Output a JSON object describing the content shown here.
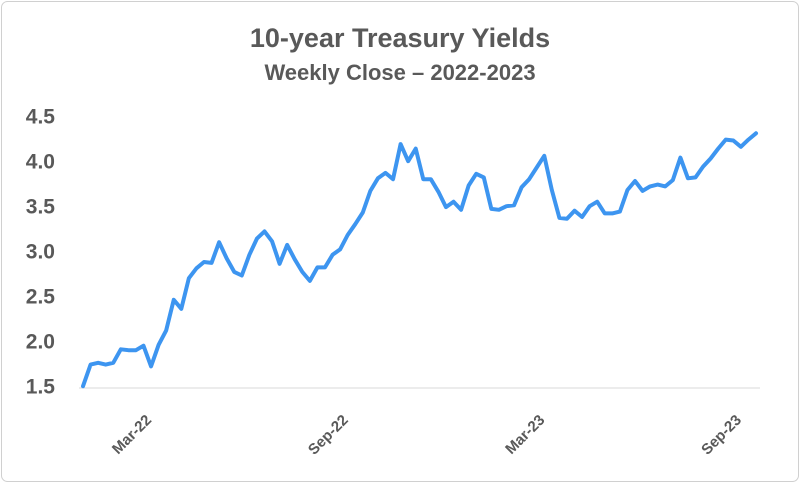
{
  "chart_data": {
    "type": "line",
    "title": "10-year Treasury Yields",
    "subtitle": "Weekly Close – 2022-2023",
    "color": "#3d95f0",
    "categories": [
      null,
      null,
      null,
      null,
      null,
      null,
      null,
      null,
      "Mar-22",
      null,
      null,
      null,
      null,
      null,
      null,
      null,
      null,
      null,
      null,
      null,
      null,
      null,
      null,
      null,
      null,
      null,
      null,
      null,
      null,
      null,
      null,
      null,
      null,
      null,
      "Sep-22",
      null,
      null,
      null,
      null,
      null,
      null,
      null,
      null,
      null,
      null,
      null,
      null,
      null,
      null,
      null,
      null,
      null,
      null,
      null,
      null,
      null,
      null,
      null,
      null,
      null,
      "Mar-23",
      null,
      null,
      null,
      null,
      null,
      null,
      null,
      null,
      null,
      null,
      null,
      null,
      null,
      null,
      null,
      null,
      null,
      null,
      null,
      null,
      null,
      null,
      null,
      null,
      null,
      "Sep-23",
      null,
      null,
      null
    ],
    "values": [
      1.52,
      1.76,
      1.78,
      1.76,
      1.78,
      1.93,
      1.92,
      1.92,
      1.97,
      1.74,
      1.98,
      2.14,
      2.48,
      2.38,
      2.72,
      2.83,
      2.9,
      2.89,
      3.12,
      2.94,
      2.79,
      2.75,
      2.98,
      3.16,
      3.24,
      3.13,
      2.88,
      3.09,
      2.93,
      2.79,
      2.69,
      2.84,
      2.84,
      2.98,
      3.04,
      3.2,
      3.32,
      3.45,
      3.69,
      3.83,
      3.89,
      3.82,
      4.21,
      4.02,
      4.16,
      3.82,
      3.82,
      3.68,
      3.51,
      3.57,
      3.48,
      3.75,
      3.88,
      3.84,
      3.49,
      3.48,
      3.52,
      3.53,
      3.73,
      3.82,
      3.95,
      4.08,
      3.7,
      3.39,
      3.38,
      3.47,
      3.4,
      3.52,
      3.57,
      3.44,
      3.44,
      3.46,
      3.7,
      3.8,
      3.69,
      3.74,
      3.76,
      3.74,
      3.81,
      4.06,
      3.83,
      3.84,
      3.96,
      4.05,
      4.16,
      4.26,
      4.25,
      4.18,
      4.26,
      4.33
    ],
    "ylim": [
      1.5,
      4.5
    ],
    "yticks": [
      1.5,
      {
        "value": 2,
        "label": "2.0"
      },
      2.5,
      {
        "value": 3,
        "label": "3.0"
      },
      3.5,
      {
        "value": 4,
        "label": "4.0"
      },
      4.5
    ]
  }
}
